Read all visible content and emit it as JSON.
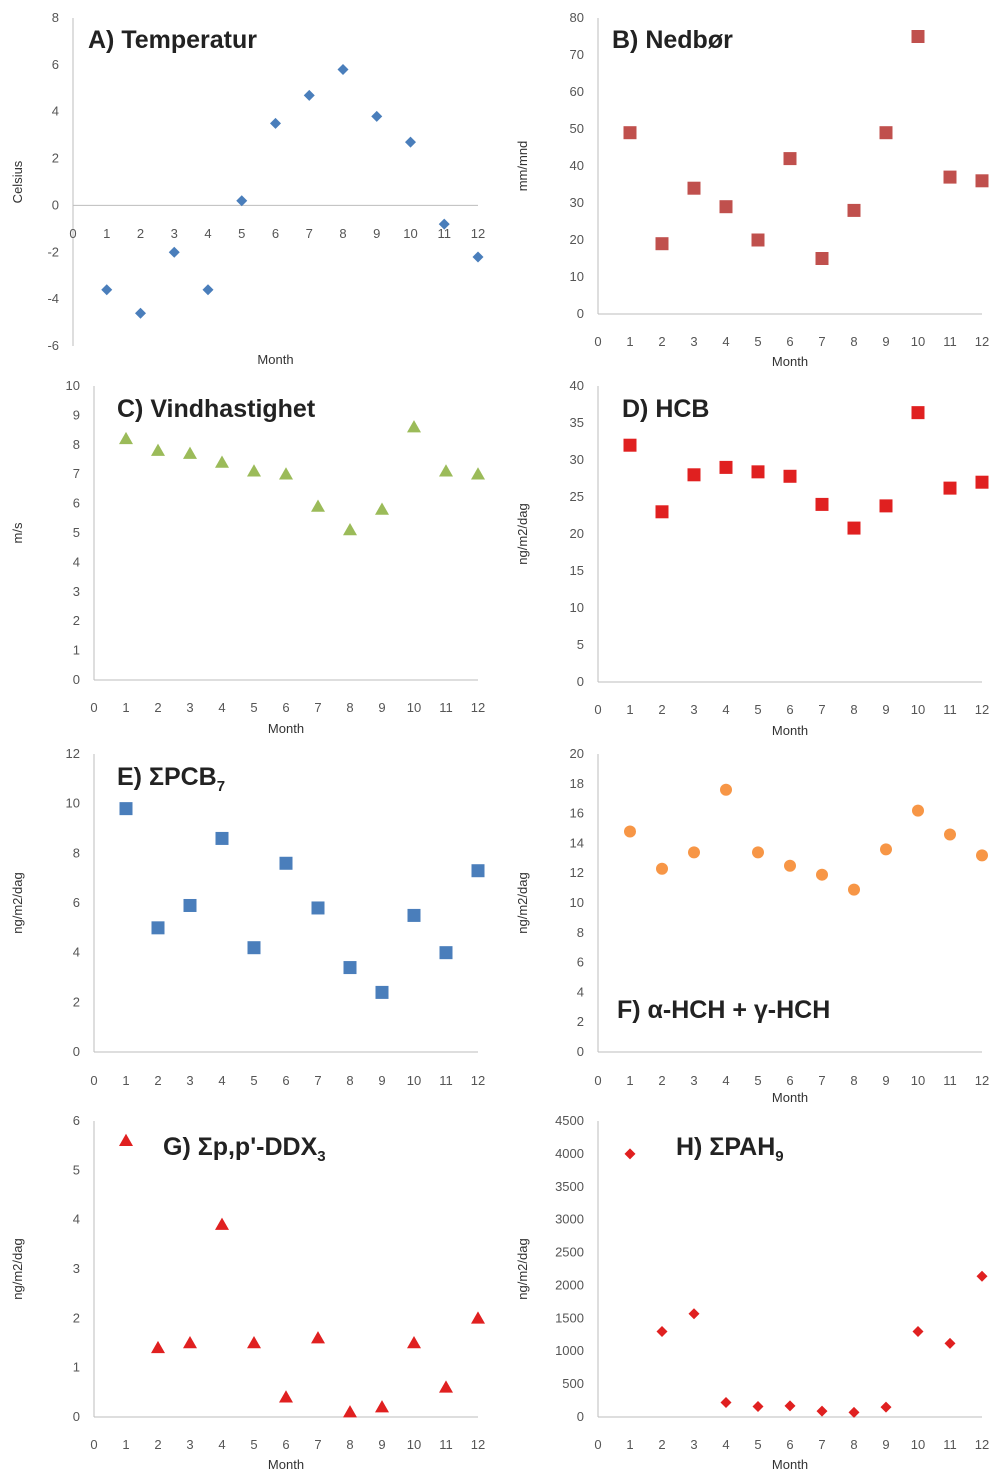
{
  "chart_data": [
    {
      "type": "scatter",
      "title": "A) Temperatur",
      "xlabel": "Month",
      "ylabel": "Celsius",
      "marker": "diamond",
      "color": "#4a7ebb",
      "xlim": [
        0,
        12
      ],
      "ylim": [
        -6,
        8
      ],
      "yticks": [
        -6,
        -4,
        -2,
        0,
        2,
        4,
        6,
        8
      ],
      "x": [
        1,
        2,
        3,
        4,
        5,
        6,
        7,
        8,
        9,
        10,
        11,
        12
      ],
      "y": [
        -3.6,
        -4.6,
        -2.0,
        -3.6,
        0.2,
        3.5,
        4.7,
        5.8,
        3.8,
        2.7,
        -0.8,
        -2.2
      ],
      "legend": "none",
      "grid": false
    },
    {
      "type": "scatter",
      "title": "B) Nedbør",
      "xlabel": "Month",
      "ylabel": "mm/mnd",
      "marker": "square",
      "color": "#c0504d",
      "xlim": [
        0,
        12
      ],
      "ylim": [
        0,
        80
      ],
      "yticks": [
        0,
        10,
        20,
        30,
        40,
        50,
        60,
        70,
        80
      ],
      "x": [
        1,
        2,
        3,
        4,
        5,
        6,
        7,
        8,
        9,
        10,
        11,
        12
      ],
      "y": [
        49,
        19,
        34,
        29,
        20,
        42,
        15,
        28,
        49,
        75,
        37,
        36
      ],
      "legend": "none",
      "grid": false
    },
    {
      "type": "scatter",
      "title": "C) Vindhastighet",
      "xlabel": "Month",
      "ylabel": "m/s",
      "marker": "triangle",
      "color": "#9bbb59",
      "xlim": [
        0,
        12
      ],
      "ylim": [
        0,
        10
      ],
      "yticks": [
        0,
        1,
        2,
        3,
        4,
        5,
        6,
        7,
        8,
        9,
        10
      ],
      "x": [
        1,
        2,
        3,
        4,
        5,
        6,
        7,
        8,
        9,
        10,
        11,
        12
      ],
      "y": [
        8.2,
        7.8,
        7.7,
        7.4,
        7.1,
        7.0,
        5.9,
        5.1,
        5.8,
        8.6,
        7.1,
        7.0
      ],
      "legend": "none",
      "grid": false
    },
    {
      "type": "scatter",
      "title": "D) HCB",
      "xlabel": "Month",
      "ylabel": "ng/m2/dag",
      "marker": "square",
      "color": "#e02020",
      "xlim": [
        0,
        12
      ],
      "ylim": [
        0,
        40
      ],
      "yticks": [
        0,
        5,
        10,
        15,
        20,
        25,
        30,
        35,
        40
      ],
      "x": [
        1,
        2,
        3,
        4,
        5,
        6,
        7,
        8,
        9,
        10,
        11,
        12
      ],
      "y": [
        32,
        23,
        28,
        29,
        28.4,
        27.8,
        24,
        20.8,
        23.8,
        36.4,
        26.2,
        27
      ],
      "legend": "none",
      "grid": false
    },
    {
      "type": "scatter",
      "title": "E) ΣPCB",
      "title_subscript": "7",
      "xlabel": "",
      "ylabel": "ng/m2/dag",
      "marker": "square",
      "color": "#4a7ebb",
      "xlim": [
        0,
        12
      ],
      "ylim": [
        0,
        12
      ],
      "yticks": [
        0,
        2,
        4,
        6,
        8,
        10,
        12
      ],
      "x": [
        1,
        2,
        3,
        4,
        5,
        6,
        7,
        8,
        9,
        10,
        11,
        12
      ],
      "y": [
        9.8,
        5.0,
        5.9,
        8.6,
        4.2,
        7.6,
        5.8,
        3.4,
        2.4,
        5.5,
        4.0,
        7.3
      ],
      "legend": "none",
      "grid": false
    },
    {
      "type": "scatter",
      "title": "F) α-HCH + γ-HCH",
      "xlabel": "Month",
      "ylabel": "ng/m2/dag",
      "marker": "circle",
      "color": "#f79646",
      "xlim": [
        0,
        12
      ],
      "ylim": [
        0,
        20
      ],
      "yticks": [
        0,
        2,
        4,
        6,
        8,
        10,
        12,
        14,
        16,
        18,
        20
      ],
      "x": [
        1,
        2,
        3,
        4,
        5,
        6,
        7,
        8,
        9,
        10,
        11,
        12
      ],
      "y": [
        14.8,
        12.3,
        13.4,
        17.6,
        13.4,
        12.5,
        11.9,
        10.9,
        13.6,
        16.2,
        14.6,
        13.2
      ],
      "legend": "none",
      "grid": false
    },
    {
      "type": "scatter",
      "title": "G) Σp,p'-DDX",
      "title_subscript": "3",
      "xlabel": "Month",
      "ylabel": "ng/m2/dag",
      "marker": "triangle",
      "color": "#e02020",
      "xlim": [
        0,
        12
      ],
      "ylim": [
        0,
        6
      ],
      "yticks": [
        0,
        1,
        2,
        3,
        4,
        5,
        6
      ],
      "x": [
        1,
        2,
        3,
        4,
        5,
        6,
        7,
        8,
        9,
        10,
        11,
        12
      ],
      "y": [
        5.6,
        1.4,
        1.5,
        3.9,
        1.5,
        0.4,
        1.6,
        0.1,
        0.2,
        1.5,
        0.6,
        2.0
      ],
      "legend": "none",
      "grid": false
    },
    {
      "type": "scatter",
      "title": "H) ΣPAH",
      "title_subscript": "9",
      "xlabel": "Month",
      "ylabel": "ng/m2/dag",
      "marker": "diamond",
      "color": "#e02020",
      "xlim": [
        0,
        12
      ],
      "ylim": [
        0,
        4500
      ],
      "yticks": [
        0,
        500,
        1000,
        1500,
        2000,
        2500,
        3000,
        3500,
        4000,
        4500
      ],
      "x": [
        1,
        2,
        3,
        4,
        5,
        6,
        7,
        8,
        9,
        10,
        11,
        12
      ],
      "y": [
        4000,
        1300,
        1570,
        220,
        160,
        170,
        90,
        70,
        150,
        1300,
        1120,
        2140
      ],
      "legend": "none",
      "grid": false
    }
  ]
}
